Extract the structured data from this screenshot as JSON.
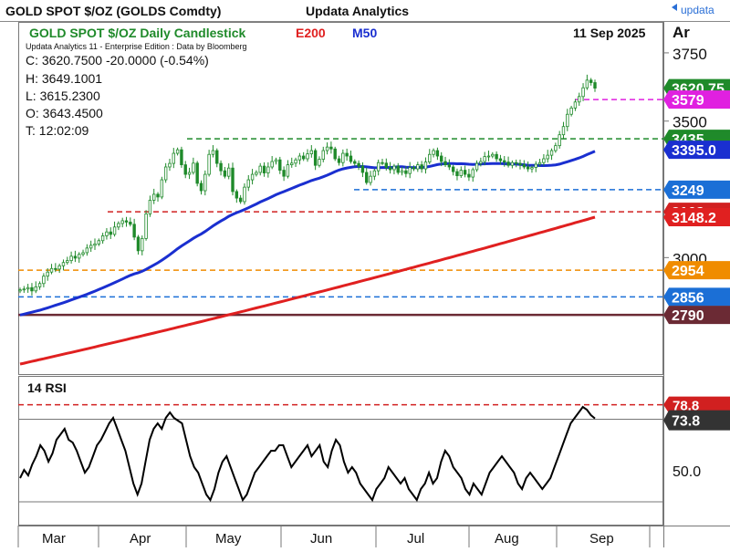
{
  "header": {
    "security": "GOLD SPOT $/OZ (GOLDS Comdty)",
    "publisher": "Updata Analytics",
    "logo_text": "updata"
  },
  "chart_header": {
    "title": "GOLD SPOT $/OZ Daily Candlestick",
    "e200_label": "E200",
    "m50_label": "M50",
    "date": "11 Sep 2025",
    "axis_unit": "Ar",
    "edition": "Updata Analytics 11 - Enterprise Edition : Data by Bloomberg",
    "close": "C: 3620.7500  -20.0000 (-0.54%)",
    "high": "H: 3649.1001",
    "low": "L: 3615.2300",
    "open": "O: 3643.4500",
    "time": "T: 12:02:09"
  },
  "rsi_panel": {
    "title": "14 RSI"
  },
  "colors": {
    "e200": "#e02020",
    "m50": "#1a2fd0",
    "candle": "#1f8a2a",
    "up_fill": "#ffffff",
    "level_green": "#1f8a2a",
    "level_blue": "#1b6fd6",
    "level_red": "#d12020",
    "level_orange": "#f08c00",
    "level_magenta": "#e020e0",
    "level_maroon": "#6b2a34",
    "rsi_line": "#000000"
  },
  "chart_data": [
    {
      "type": "candlestick",
      "title": "GOLD SPOT $/OZ Daily Candlestick",
      "y_ticks": [
        "3750",
        "3500",
        "3000"
      ],
      "x_ticks": [
        "Mar",
        "Apr",
        "May",
        "Jun",
        "Jul",
        "Aug",
        "Sep"
      ],
      "ylim": [
        2580,
        3850
      ],
      "last_close": 3620.75,
      "series_e200": {
        "name": "E200",
        "start": 2610,
        "end": 3148.2
      },
      "series_m50": {
        "name": "M50",
        "end": 3395.0
      },
      "horizontal_levels": [
        {
          "label": "3579",
          "value": 3579,
          "color": "#e020e0"
        },
        {
          "label": "3435",
          "value": 3435,
          "color": "#1f8a2a"
        },
        {
          "label": "3249",
          "value": 3249,
          "color": "#1b6fd6"
        },
        {
          "label": "3168",
          "value": 3168,
          "color": "#d12020"
        },
        {
          "label": "2954",
          "value": 2954,
          "color": "#f08c00"
        },
        {
          "label": "2856",
          "value": 2856,
          "color": "#1b6fd6"
        },
        {
          "label": "2790",
          "value": 2790,
          "color": "#6b2a34"
        }
      ],
      "price_tags": [
        {
          "label": "3620.75",
          "value": 3620.75,
          "bg": "#1f8a2a"
        },
        {
          "label": "3579",
          "value": 3579,
          "bg": "#e020e0"
        },
        {
          "label": "3435",
          "value": 3435,
          "bg": "#1f8a2a"
        },
        {
          "label": "3395.0",
          "value": 3395,
          "bg": "#1a2fd0"
        },
        {
          "label": "3249",
          "value": 3249,
          "bg": "#1b6fd6"
        },
        {
          "label": "3168",
          "value": 3168,
          "bg": "#d12020"
        },
        {
          "label": "3148.2",
          "value": 3148.2,
          "bg": "#e02020"
        },
        {
          "label": "2954",
          "value": 2954,
          "bg": "#f08c00"
        },
        {
          "label": "2856",
          "value": 2856,
          "bg": "#1b6fd6"
        },
        {
          "label": "2790",
          "value": 2790,
          "bg": "#6b2a34"
        }
      ],
      "closes": [
        2882,
        2885,
        2890,
        2878,
        2893,
        2905,
        2932,
        2947,
        2960,
        2958,
        2970,
        2982,
        2989,
        3005,
        2998,
        3012,
        3018,
        3035,
        3045,
        3050,
        3062,
        3080,
        3094,
        3085,
        3112,
        3125,
        3135,
        3130,
        3122,
        3075,
        3025,
        3070,
        3160,
        3210,
        3232,
        3222,
        3285,
        3332,
        3345,
        3382,
        3395,
        3340,
        3305,
        3312,
        3346,
        3272,
        3245,
        3305,
        3378,
        3392,
        3345,
        3318,
        3298,
        3328,
        3242,
        3218,
        3205,
        3258,
        3285,
        3305,
        3312,
        3335,
        3310,
        3332,
        3352,
        3358,
        3320,
        3298,
        3340,
        3346,
        3358,
        3372,
        3362,
        3380,
        3392,
        3338,
        3360,
        3392,
        3405,
        3398,
        3362,
        3348,
        3382,
        3372,
        3352,
        3345,
        3335,
        3312,
        3275,
        3298,
        3318,
        3348,
        3346,
        3330,
        3322,
        3335,
        3312,
        3318,
        3308,
        3330,
        3325,
        3340,
        3325,
        3350,
        3378,
        3392,
        3372,
        3352,
        3340,
        3332,
        3315,
        3300,
        3320,
        3305,
        3295,
        3322,
        3345,
        3352,
        3370,
        3372,
        3378,
        3362,
        3355,
        3350,
        3338,
        3348,
        3345,
        3340,
        3332,
        3325,
        3330,
        3342,
        3348,
        3362,
        3375,
        3392,
        3410,
        3450,
        3480,
        3525,
        3548,
        3570,
        3590,
        3622,
        3650,
        3641,
        3620.75
      ]
    },
    {
      "type": "line",
      "title": "14 RSI",
      "y_ticks": [
        "50.0"
      ],
      "levels": [
        {
          "label": "78.8",
          "value": 78.8
        }
      ],
      "last_value_label": "73.8",
      "last_value": 73.8,
      "ylim": [
        40,
        80
      ],
      "values": [
        52,
        55,
        53,
        57,
        60,
        64,
        62,
        58,
        61,
        66,
        68,
        70,
        66,
        65,
        62,
        58,
        54,
        56,
        60,
        64,
        66,
        69,
        72,
        74,
        70,
        66,
        62,
        56,
        50,
        46,
        50,
        58,
        66,
        70,
        72,
        70,
        74,
        76,
        74,
        73,
        72,
        66,
        60,
        56,
        54,
        50,
        46,
        44,
        48,
        54,
        58,
        60,
        56,
        52,
        48,
        44,
        46,
        50,
        54,
        56,
        58,
        60,
        62,
        62,
        64,
        64,
        60,
        56,
        58,
        60,
        62,
        64,
        60,
        62,
        64,
        58,
        56,
        62,
        66,
        64,
        58,
        54,
        56,
        54,
        50,
        48,
        46,
        44,
        48,
        50,
        52,
        56,
        54,
        52,
        50,
        52,
        48,
        46,
        44,
        48,
        50,
        54,
        50,
        52,
        58,
        62,
        60,
        56,
        54,
        52,
        48,
        46,
        50,
        48,
        46,
        50,
        54,
        56,
        58,
        60,
        58,
        56,
        54,
        50,
        48,
        52,
        54,
        52,
        50,
        48,
        50,
        52,
        56,
        60,
        64,
        68,
        72,
        74,
        76,
        78,
        77,
        75,
        73.8
      ]
    }
  ]
}
